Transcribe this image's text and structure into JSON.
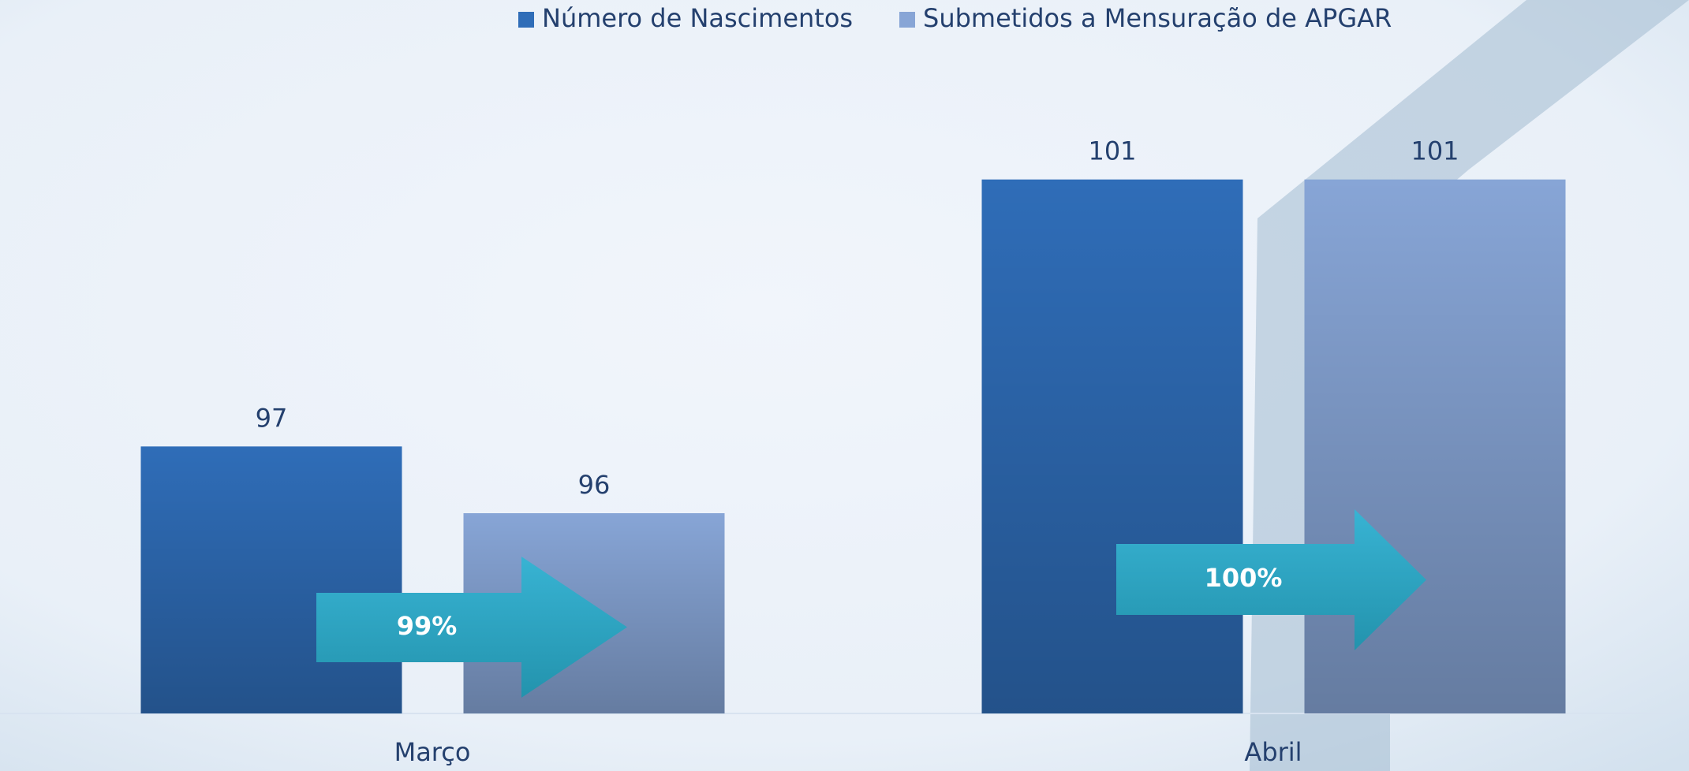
{
  "chart_data": {
    "type": "bar",
    "categories": [
      "Março",
      "Abril"
    ],
    "series": [
      {
        "name": "Número de Nascimentos",
        "color": "#2f6db8",
        "values": [
          97,
          101
        ]
      },
      {
        "name": "Submetidos a Mensuração de APGAR",
        "color": "#87a5d6",
        "values": [
          96,
          101
        ]
      }
    ],
    "ylim": [
      93,
      102
    ],
    "annotations": [
      {
        "text": "99%",
        "category": 0
      },
      {
        "text": "100%",
        "category": 1
      }
    ]
  }
}
